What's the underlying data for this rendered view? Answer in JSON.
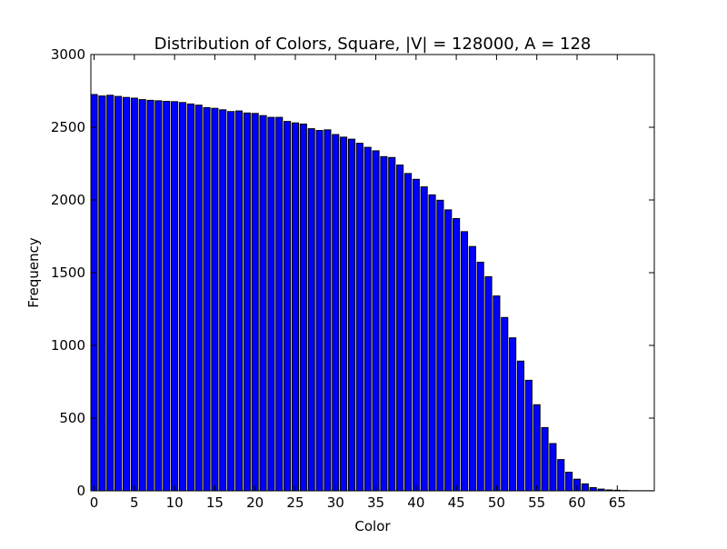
{
  "chart_data": {
    "type": "bar",
    "title": "Distribution of Colors, Square, |V| = 128000, A = 128",
    "xlabel": "Color",
    "ylabel": "Frequency",
    "xlim": [
      0,
      70
    ],
    "ylim": [
      0,
      3000
    ],
    "xticks": [
      0,
      5,
      10,
      15,
      20,
      25,
      30,
      35,
      40,
      45,
      50,
      55,
      60,
      65
    ],
    "yticks": [
      0,
      500,
      1000,
      1500,
      2000,
      2500,
      3000
    ],
    "grid": false,
    "bar_color": "#0000ff",
    "x": [
      0,
      1,
      2,
      3,
      4,
      5,
      6,
      7,
      8,
      9,
      10,
      11,
      12,
      13,
      14,
      15,
      16,
      17,
      18,
      19,
      20,
      21,
      22,
      23,
      24,
      25,
      26,
      27,
      28,
      29,
      30,
      31,
      32,
      33,
      34,
      35,
      36,
      37,
      38,
      39,
      40,
      41,
      42,
      43,
      44,
      45,
      46,
      47,
      48,
      49,
      50,
      51,
      52,
      53,
      54,
      55,
      56,
      57,
      58,
      59,
      60,
      61,
      62,
      63,
      64,
      65,
      66,
      67,
      68,
      69
    ],
    "values": [
      2725,
      2715,
      2720,
      2712,
      2705,
      2700,
      2690,
      2685,
      2682,
      2678,
      2676,
      2670,
      2660,
      2652,
      2635,
      2630,
      2620,
      2608,
      2612,
      2598,
      2595,
      2580,
      2568,
      2568,
      2540,
      2530,
      2522,
      2490,
      2478,
      2482,
      2450,
      2432,
      2418,
      2390,
      2362,
      2338,
      2298,
      2292,
      2240,
      2182,
      2142,
      2090,
      2035,
      1998,
      1932,
      1872,
      1782,
      1680,
      1572,
      1472,
      1340,
      1192,
      1052,
      892,
      760,
      592,
      435,
      325,
      215,
      128,
      80,
      48,
      22,
      12,
      6,
      4,
      2,
      1,
      1,
      1
    ]
  }
}
